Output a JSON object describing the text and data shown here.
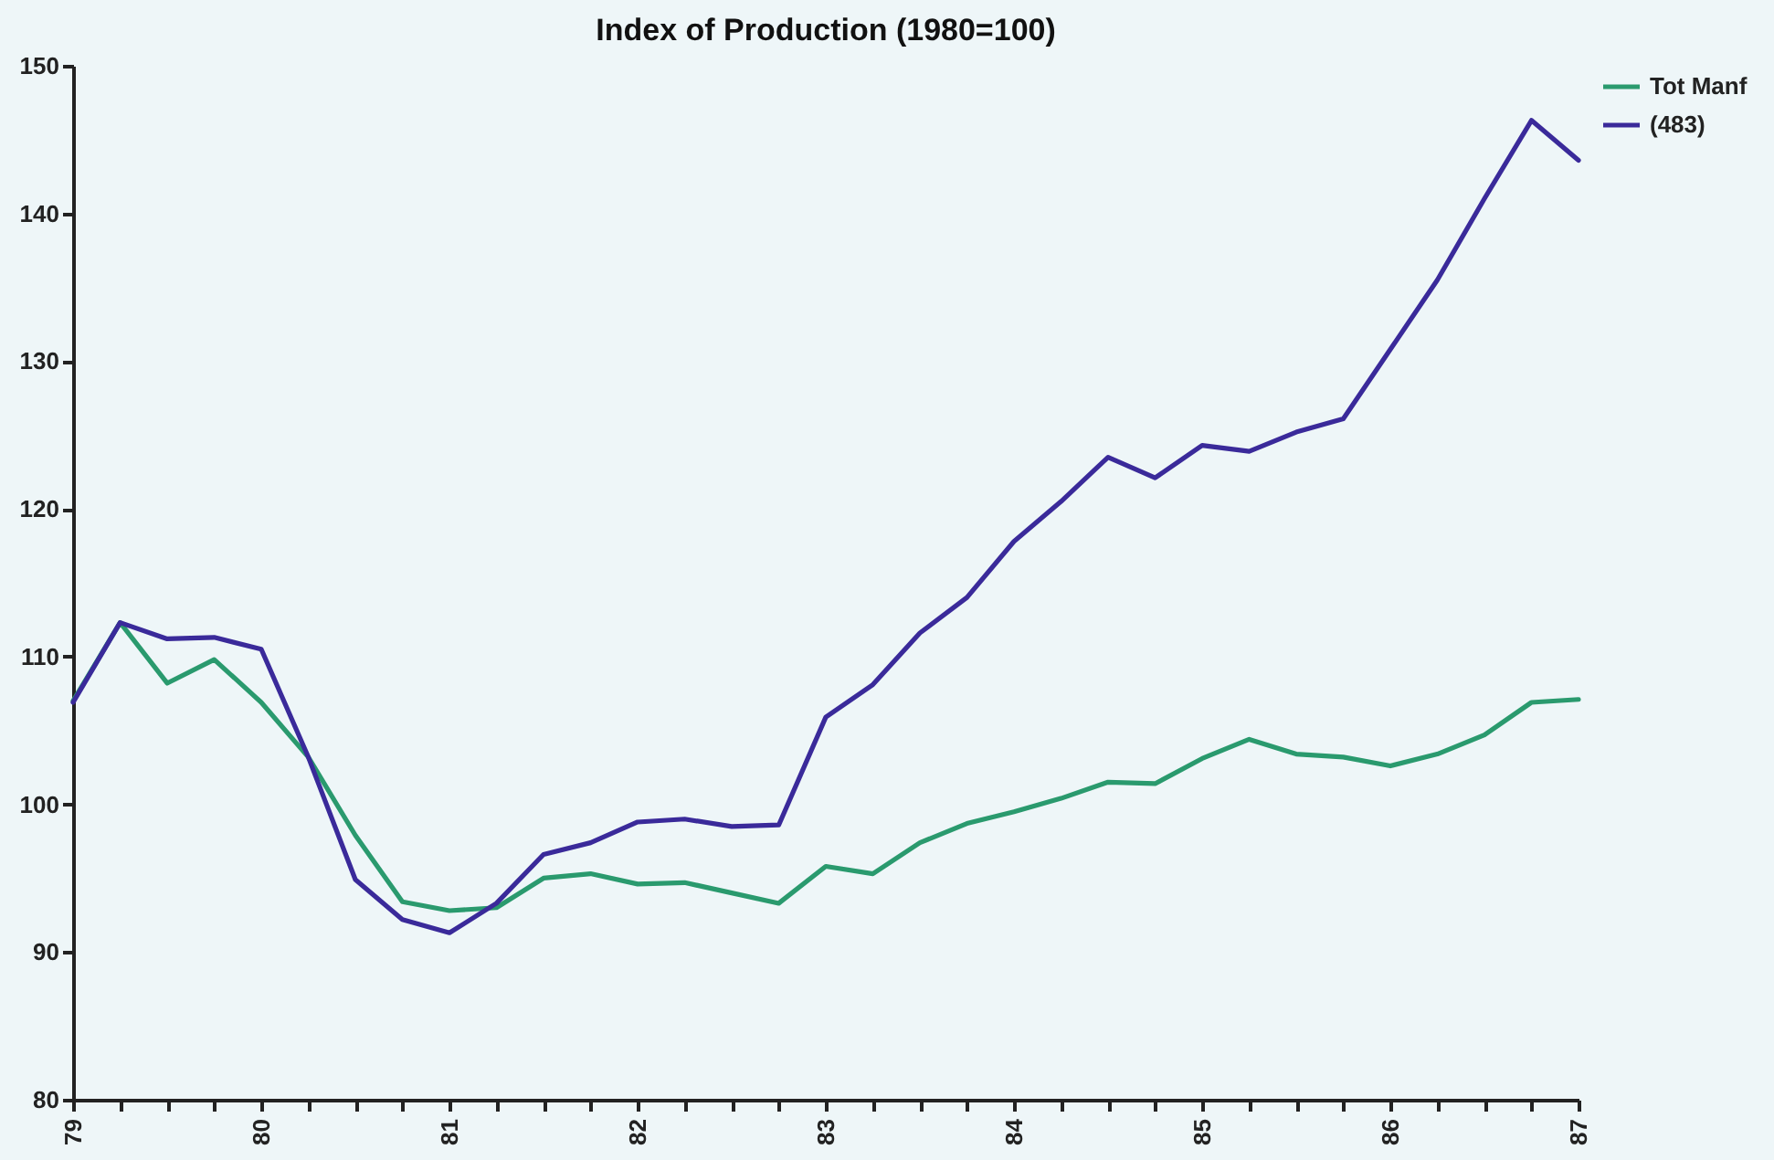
{
  "chart_data": {
    "type": "line",
    "title": "Index of Production (1980=100)",
    "x": [
      79,
      79.25,
      79.5,
      79.75,
      80,
      80.25,
      80.5,
      80.75,
      81,
      81.25,
      81.5,
      81.75,
      82,
      82.25,
      82.5,
      82.75,
      83,
      83.25,
      83.5,
      83.75,
      84,
      84.25,
      84.5,
      84.75,
      85,
      85.25,
      85.5,
      85.75,
      86,
      86.25,
      86.5,
      86.75,
      87
    ],
    "series": [
      {
        "name": "Tot Manf",
        "color": "#2a9a6e",
        "values": [
          107,
          112.3,
          108.2,
          109.8,
          106.9,
          103.2,
          97.9,
          93.4,
          92.8,
          93,
          95,
          95.3,
          94.6,
          94.7,
          94,
          93.3,
          95.8,
          95.3,
          97.4,
          98.7,
          99.5,
          100.4,
          101.5,
          101.4,
          103.1,
          104.4,
          103.4,
          103.2,
          102.6,
          103.4,
          104.7,
          106.9,
          107.1
        ]
      },
      {
        "name": "(483)",
        "color": "#3a2a9a",
        "values": [
          106.9,
          112.3,
          111.2,
          111.3,
          110.5,
          103.2,
          94.9,
          92.2,
          91.3,
          93.3,
          96.6,
          97.4,
          98.8,
          99,
          98.5,
          98.6,
          105.9,
          108.1,
          111.6,
          114,
          117.8,
          120.5,
          123.5,
          122.1,
          124.3,
          123.9,
          125.2,
          126.1,
          130.8,
          135.5,
          141,
          146.3,
          143.6
        ]
      }
    ],
    "xlim": [
      79,
      87
    ],
    "xticks": [
      79,
      {
        "value": 79.25,
        "label": null
      },
      {
        "value": 79.5,
        "label": null
      },
      {
        "value": 79.75,
        "label": null
      },
      80,
      {
        "value": 80.25,
        "label": null
      },
      {
        "value": 80.5,
        "label": null
      },
      {
        "value": 80.75,
        "label": null
      },
      81,
      {
        "value": 81.25,
        "label": null
      },
      {
        "value": 81.5,
        "label": null
      },
      {
        "value": 81.75,
        "label": null
      },
      82,
      {
        "value": 82.25,
        "label": null
      },
      {
        "value": 82.5,
        "label": null
      },
      {
        "value": 82.75,
        "label": null
      },
      83,
      {
        "value": 83.25,
        "label": null
      },
      {
        "value": 83.5,
        "label": null
      },
      {
        "value": 83.75,
        "label": null
      },
      84,
      {
        "value": 84.25,
        "label": null
      },
      {
        "value": 84.5,
        "label": null
      },
      {
        "value": 84.75,
        "label": null
      },
      85,
      {
        "value": 85.25,
        "label": null
      },
      {
        "value": 85.5,
        "label": null
      },
      {
        "value": 85.75,
        "label": null
      },
      86,
      {
        "value": 86.25,
        "label": null
      },
      {
        "value": 86.5,
        "label": null
      },
      {
        "value": 86.75,
        "label": null
      },
      87
    ],
    "ylim": [
      80,
      150
    ],
    "yticks": [
      80,
      90,
      100,
      110,
      120,
      130,
      140,
      150
    ],
    "legend": "top right"
  }
}
